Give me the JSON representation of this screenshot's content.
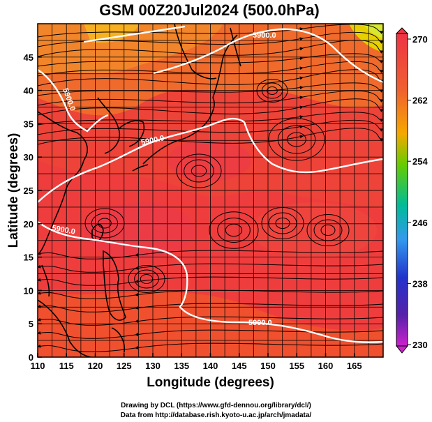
{
  "title": "GSM 00Z20Jul2024 (500.0hPa)",
  "x_axis": {
    "label": "Longitude (degrees)",
    "ticks": [
      "110",
      "115",
      "120",
      "125",
      "130",
      "135",
      "140",
      "145",
      "150",
      "155",
      "160",
      "165"
    ]
  },
  "y_axis": {
    "label": "Latitude  (degrees)",
    "ticks": [
      "0",
      "5",
      "10",
      "15",
      "20",
      "25",
      "30",
      "35",
      "40",
      "45"
    ]
  },
  "colorbar": {
    "ticks": [
      "270",
      "262",
      "254",
      "246",
      "238",
      "230"
    ],
    "colors": [
      "#ee3344",
      "#f06030",
      "#f5a800",
      "#66cc00",
      "#00bb99",
      "#3399ee",
      "#2233cc",
      "#5522aa",
      "#cc22cc"
    ]
  },
  "contour_labels": {
    "c1": "5900.0",
    "c2": "5900.0",
    "c3": "5900.0",
    "c4": "5900.0",
    "c5": "5900.0"
  },
  "credits": {
    "line1": "Drawing by DCL (https://www.gfd-dennou.org/library/dcl/)",
    "line2": "Data from http://database.rish.kyoto-u.ac.jp/arch/jmadata/"
  },
  "map_extent": {
    "lon": [
      110,
      170
    ],
    "lat": [
      0,
      50
    ]
  }
}
